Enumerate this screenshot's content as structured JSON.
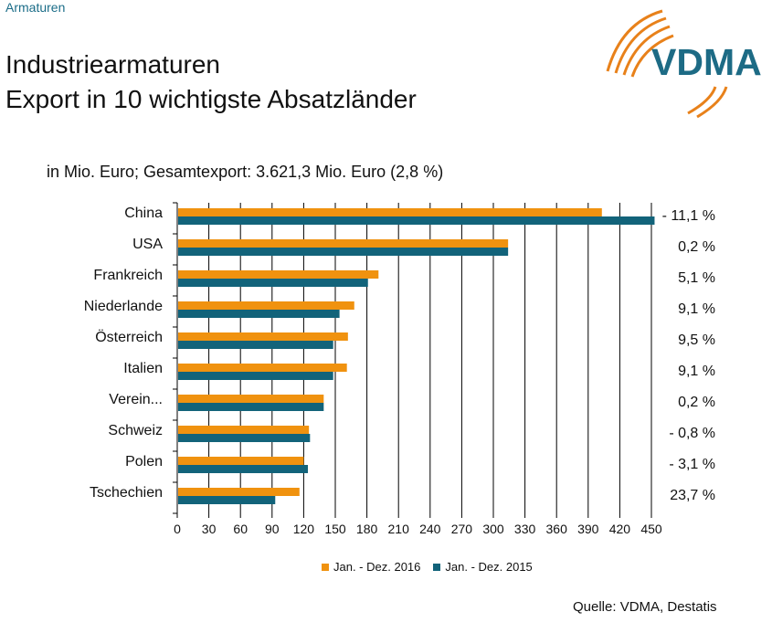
{
  "header": {
    "section": "Armaturen",
    "title_line1": "Industriearmaturen",
    "title_line2": "Export in 10 wichtigste Absatzländer",
    "logo_text": "VDMA"
  },
  "colors": {
    "series_2016": "#f0920f",
    "series_2015": "#12637a",
    "logo_teal": "#1d6b85",
    "logo_orange": "#e8811a"
  },
  "subtitle": "in Mio. Euro; Gesamtexport: 3.621,3 Mio. Euro (2,8 %)",
  "source": "Quelle: VDMA, Destatis",
  "chart_data": {
    "type": "bar",
    "orientation": "horizontal",
    "categories": [
      "China",
      "USA",
      "Frankreich",
      "Niederlande",
      "Österreich",
      "Italien",
      "Verein...",
      "Schweiz",
      "Polen",
      "Tschechien"
    ],
    "series": [
      {
        "name": "Jan. - Dez. 2016",
        "color": "#f0920f",
        "values": [
          403,
          314,
          191,
          168,
          162,
          161,
          139,
          125,
          120,
          116
        ]
      },
      {
        "name": "Jan. - Dez. 2015",
        "color": "#12637a",
        "values": [
          453,
          314,
          181,
          154,
          148,
          148,
          139,
          126,
          124,
          93
        ]
      }
    ],
    "change_labels": [
      "- 11,1 %",
      "0,2 %",
      "5,1 %",
      "9,1 %",
      "9,5 %",
      "9,1 %",
      "0,2 %",
      "- 0,8 %",
      "- 3,1 %",
      "23,7 %"
    ],
    "xticks": [
      0,
      30,
      60,
      90,
      120,
      150,
      180,
      210,
      240,
      270,
      300,
      330,
      360,
      390,
      420,
      450
    ],
    "xlim": [
      0,
      450
    ],
    "grid": "vertical",
    "legend": "bottom"
  }
}
